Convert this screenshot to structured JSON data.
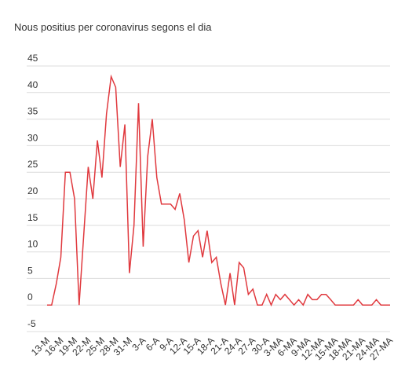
{
  "chart_data": {
    "type": "line",
    "title": "Nous positius per coronavirus segons el dia",
    "xlabel": "",
    "ylabel": "",
    "ylim": [
      -5,
      45
    ],
    "yticks": [
      -5,
      0,
      5,
      10,
      15,
      20,
      25,
      30,
      35,
      40,
      45
    ],
    "grid": true,
    "legend": "none",
    "line_color": "#e0393e",
    "x_tick_labels": [
      "13-M",
      "16-M",
      "19-M",
      "22-M",
      "25-M",
      "28-M",
      "31-M",
      "3-A",
      "6-A",
      "9-A",
      "12-A",
      "15-A",
      "18-A",
      "21-A",
      "24-A",
      "27-A",
      "30-A",
      "3-MA",
      "6-MA",
      "9-MA",
      "12-MA",
      "15-MA",
      "18-MA",
      "21-MA",
      "24-MA",
      "27-MA"
    ],
    "x_tick_index": [
      0,
      3,
      6,
      9,
      12,
      15,
      18,
      21,
      24,
      27,
      30,
      33,
      36,
      39,
      42,
      45,
      48,
      51,
      54,
      57,
      60,
      63,
      66,
      69,
      72,
      75
    ],
    "series": [
      {
        "values": [
          0,
          0,
          4,
          9,
          25,
          25,
          20,
          0,
          13,
          26,
          20,
          31,
          24,
          36,
          43,
          41,
          26,
          34,
          6,
          15,
          38,
          11,
          28,
          35,
          24,
          19,
          19,
          19,
          18,
          21,
          16,
          8,
          13,
          14,
          9,
          14,
          8,
          9,
          4,
          0,
          6,
          0,
          8,
          7,
          2,
          3,
          0,
          0,
          2,
          0,
          2,
          1,
          2,
          1,
          0,
          1,
          0,
          2,
          1,
          1,
          2,
          2,
          1,
          0,
          0,
          0,
          0,
          0,
          1,
          0,
          0,
          0,
          1,
          0,
          0,
          0
        ]
      }
    ]
  }
}
